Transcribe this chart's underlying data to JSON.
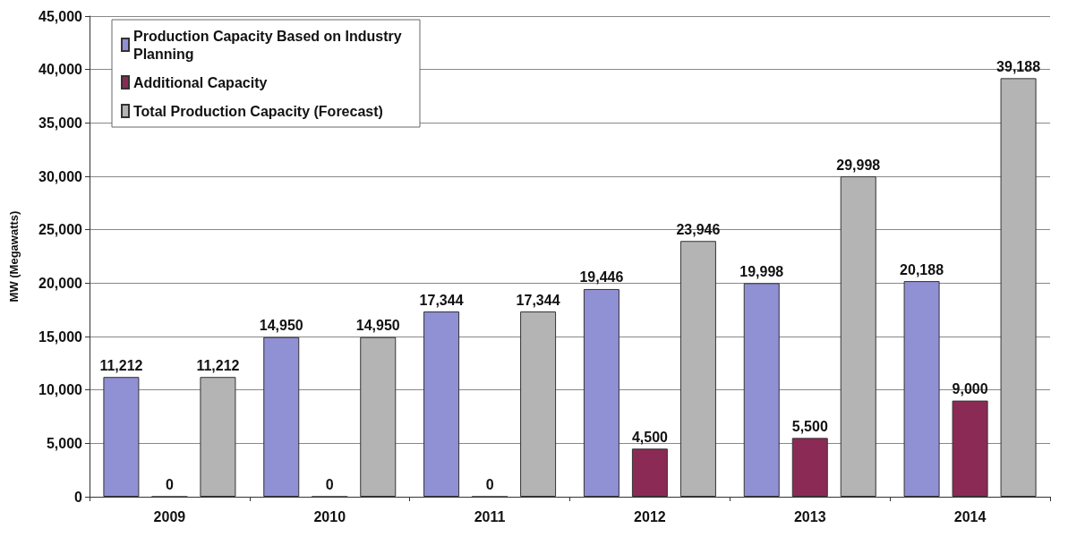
{
  "chart_data": {
    "type": "bar",
    "ylabel": "MW (Megawatts)",
    "categories": [
      "2009",
      "2010",
      "2011",
      "2012",
      "2013",
      "2014"
    ],
    "series": [
      {
        "name": "Production Capacity Based on Industry Planning",
        "color": "#9090d4",
        "values": [
          11212,
          14950,
          17344,
          19446,
          19998,
          20188
        ],
        "value_labels": [
          "11,212",
          "14,950",
          "17,344",
          "19,446",
          "19,998",
          "20,188"
        ]
      },
      {
        "name": "Additional Capacity",
        "color": "#8c2a56",
        "values": [
          0,
          0,
          0,
          4500,
          5500,
          9000
        ],
        "value_labels": [
          "0",
          "0",
          "0",
          "4,500",
          "5,500",
          "9,000"
        ]
      },
      {
        "name": "Total Production Capacity (Forecast)",
        "color": "#b4b4b4",
        "values": [
          11212,
          14950,
          17344,
          23946,
          29998,
          39188
        ],
        "value_labels": [
          "11,212",
          "14,950",
          "17,344",
          "23,946",
          "29,998",
          "39,188"
        ]
      }
    ],
    "ylim": [
      0,
      45000
    ],
    "yticks": [
      {
        "value": 0,
        "label": "0"
      },
      {
        "value": 5000,
        "label": "5,000"
      },
      {
        "value": 10000,
        "label": "10,000"
      },
      {
        "value": 15000,
        "label": "15,000"
      },
      {
        "value": 20000,
        "label": "20,000"
      },
      {
        "value": 25000,
        "label": "25,000"
      },
      {
        "value": 30000,
        "label": "30,000"
      },
      {
        "value": 35000,
        "label": "35,000"
      },
      {
        "value": 40000,
        "label": "40,000"
      },
      {
        "value": 45000,
        "label": "45,000"
      }
    ],
    "grid": "y",
    "legend": "top left"
  }
}
